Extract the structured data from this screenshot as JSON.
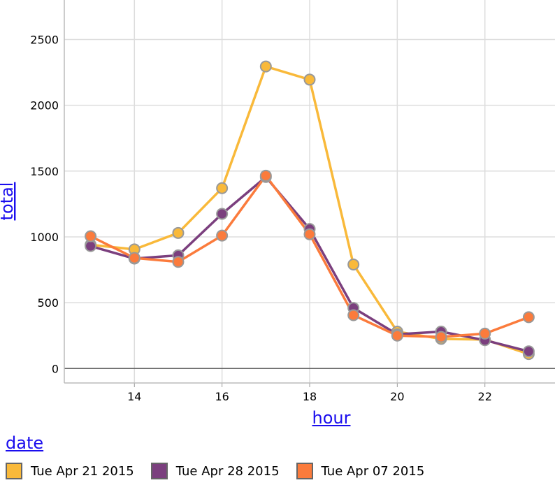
{
  "chart_data": {
    "type": "line",
    "xlabel": "hour",
    "ylabel": "total",
    "xlim": [
      12.4,
      23.6
    ],
    "ylim": [
      -110,
      2800
    ],
    "x_ticks": [
      14,
      16,
      18,
      20,
      22
    ],
    "y_ticks": [
      0,
      500,
      1000,
      1500,
      2000,
      2500
    ],
    "grid": true,
    "legend": {
      "title": "date",
      "placement": "bottom-left"
    },
    "x": [
      13,
      14,
      15,
      16,
      17,
      18,
      19,
      20,
      21,
      22,
      23
    ],
    "series": [
      {
        "name": "Tue Apr 21 2015",
        "color": "#f9b93a",
        "values": [
          940,
          905,
          1030,
          1370,
          2295,
          2195,
          790,
          280,
          225,
          220,
          110
        ]
      },
      {
        "name": "Tue Apr 28 2015",
        "color": "#7b3f7e",
        "values": [
          930,
          835,
          860,
          1175,
          1455,
          1060,
          460,
          260,
          280,
          215,
          130
        ]
      },
      {
        "name": "Tue Apr 07 2015",
        "color": "#fb7b3c",
        "values": [
          1005,
          840,
          810,
          1010,
          1465,
          1020,
          405,
          250,
          240,
          265,
          390
        ]
      }
    ]
  }
}
